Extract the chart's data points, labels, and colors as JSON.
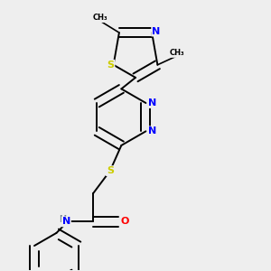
{
  "bg_color": "#eeeeee",
  "bond_color": "#000000",
  "atom_colors": {
    "S": "#cccc00",
    "N": "#0000ff",
    "O": "#ff0000",
    "C": "#000000",
    "H": "#708090"
  },
  "figsize": [
    3.0,
    3.0
  ],
  "dpi": 100
}
